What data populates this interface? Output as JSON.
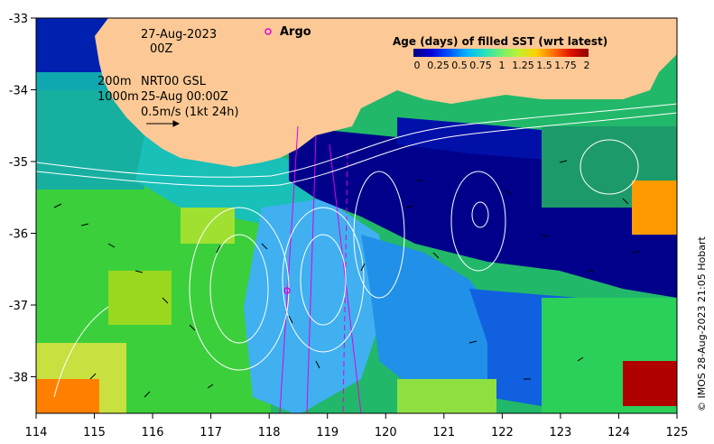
{
  "annotations": {
    "date": "27-Aug-2023",
    "hour": "00Z",
    "depth_shallow": "200m",
    "product": "NRT00 GSL",
    "depth_deep": "1000m",
    "analysis_time": "25-Aug 00:00Z",
    "vector_scale": "0.5m/s (1kt 24h)"
  },
  "argo": {
    "label": "Argo",
    "color": "#e000e0"
  },
  "legend": {
    "title": "Age (days) of filled SST (wrt latest)",
    "ticks": [
      "0",
      "0.25",
      "0.5",
      "0.75",
      "1",
      "1.25",
      "1.5",
      "1.75",
      "2"
    ],
    "colors": [
      "#00007f",
      "#0000d8",
      "#0050ff",
      "#00b0ff",
      "#20e0c0",
      "#70f070",
      "#c0f030",
      "#ffd000",
      "#ff7000",
      "#e01000",
      "#8b0000"
    ]
  },
  "credit": "© IMOS 28-Aug-2023 21:05 Hobart",
  "axes": {
    "x_ticks": [
      "114",
      "115",
      "116",
      "117",
      "118",
      "119",
      "120",
      "121",
      "122",
      "123",
      "124",
      "125"
    ],
    "y_ticks": [
      "-33",
      "-34",
      "-35",
      "-36",
      "-37",
      "-38"
    ]
  },
  "colors": {
    "land": "#fcc996",
    "deep_blue": "#00008b",
    "frame": "#000000"
  }
}
